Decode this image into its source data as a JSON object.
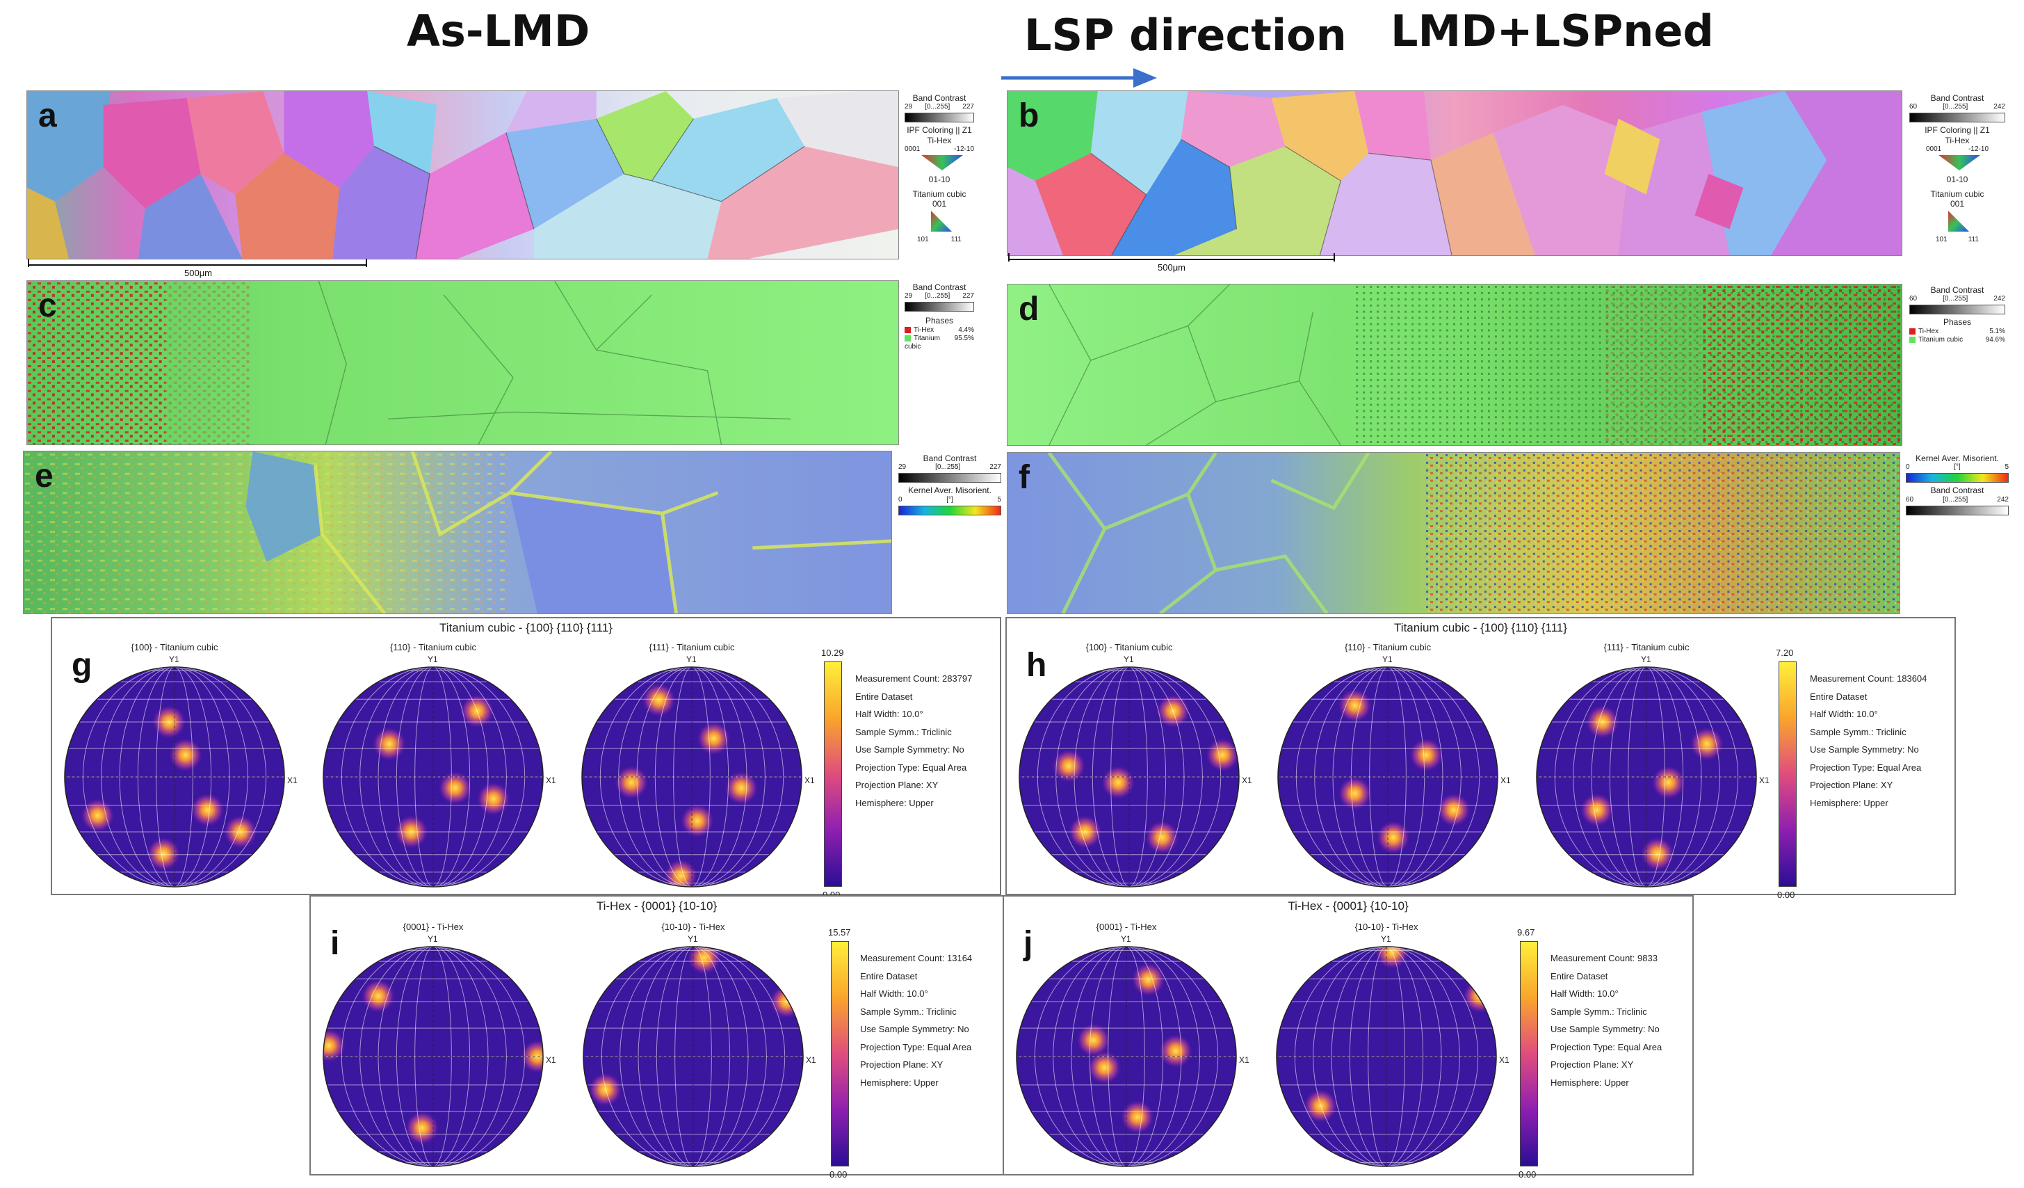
{
  "headers": {
    "left": "As-LMD",
    "middle": "LSP direction",
    "right": "LMD+LSPned"
  },
  "colors": {
    "arrow": "#3a6fcb",
    "ti_hex": "#e01e1e",
    "ti_cubic": "#5ee45e"
  },
  "panels": {
    "a": {
      "letter": "a",
      "scale": "500μm",
      "legend": {
        "band_contrast": "Band Contrast",
        "bc_min": "29",
        "bc_range": "[0...255]",
        "bc_max": "227",
        "ipf": "IPF Coloring || Z1",
        "hex_name": "Ti-Hex",
        "hex_top": "0001",
        "hex_right": "-12-10",
        "hex_bottom": "01-10",
        "cubic_name": "Titanium cubic",
        "cubic_top": "001",
        "cubic_left": "101",
        "cubic_right": "111"
      }
    },
    "b": {
      "letter": "b",
      "scale": "500μm",
      "legend": {
        "band_contrast": "Band Contrast",
        "bc_min": "60",
        "bc_range": "[0...255]",
        "bc_max": "242",
        "ipf": "IPF Coloring || Z1",
        "hex_name": "Ti-Hex",
        "hex_top": "0001",
        "hex_right": "-12-10",
        "hex_bottom": "01-10",
        "cubic_name": "Titanium cubic",
        "cubic_top": "001",
        "cubic_left": "101",
        "cubic_right": "111"
      }
    },
    "c": {
      "letter": "c",
      "legend": {
        "band_contrast": "Band Contrast",
        "bc_min": "29",
        "bc_range": "[0...255]",
        "bc_max": "227",
        "phases": "Phases",
        "hex_name": "Ti-Hex",
        "hex_pct": "4.4%",
        "cubic_name": "Titanium cubic",
        "cubic_pct": "95.5%"
      }
    },
    "d": {
      "letter": "d",
      "legend": {
        "band_contrast": "Band Contrast",
        "bc_min": "60",
        "bc_range": "[0...255]",
        "bc_max": "242",
        "phases": "Phases",
        "hex_name": "Ti-Hex",
        "hex_pct": "5.1%",
        "cubic_name": "Titanium cubic",
        "cubic_pct": "94.6%"
      }
    },
    "e": {
      "letter": "e",
      "legend": {
        "band_contrast": "Band Contrast",
        "bc_min": "29",
        "bc_range": "[0...255]",
        "bc_max": "227",
        "kam": "Kernel Aver. Misorient.",
        "kam_min": "0",
        "kam_unit": "[°]",
        "kam_max": "5"
      }
    },
    "f": {
      "letter": "f",
      "legend": {
        "kam": "Kernel Aver. Misorient.",
        "kam_min": "0",
        "kam_unit": "[°]",
        "kam_max": "5",
        "band_contrast": "Band Contrast",
        "bc_min": "60",
        "bc_range": "[0...255]",
        "bc_max": "242"
      }
    }
  },
  "pole_figures": {
    "g": {
      "letter": "g",
      "title": "Titanium cubic - {100} {110} {111}",
      "plots": [
        "{100} - Titanium cubic",
        "{110} - Titanium cubic",
        "{111} - Titanium cubic"
      ],
      "cb_max": "10.29",
      "cb_min": "0.00",
      "axis_y": "Y1",
      "axis_x": "X1",
      "info": [
        "Measurement Count: 283797",
        "Entire Dataset",
        "Half Width: 10.0°",
        "Sample Symm.: Triclinic",
        "Use Sample Symmetry: No",
        "Projection Type: Equal Area",
        "Projection Plane: XY",
        "Hemisphere: Upper"
      ]
    },
    "h": {
      "letter": "h",
      "title": "Titanium cubic - {100} {110} {111}",
      "plots": [
        "{100} - Titanium cubic",
        "{110} - Titanium cubic",
        "{111} - Titanium cubic"
      ],
      "cb_max": "7.20",
      "cb_min": "0.00",
      "axis_y": "Y1",
      "axis_x": "X1",
      "info": [
        "Measurement Count: 183604",
        "Entire Dataset",
        "Half Width: 10.0°",
        "Sample Symm.: Triclinic",
        "Use Sample Symmetry: No",
        "Projection Type: Equal Area",
        "Projection Plane: XY",
        "Hemisphere: Upper"
      ]
    },
    "i": {
      "letter": "i",
      "title": "Ti-Hex - {0001} {10-10}",
      "plots": [
        "{0001} - Ti-Hex",
        "{10-10} - Ti-Hex"
      ],
      "cb_max": "15.57",
      "cb_min": "0.00",
      "axis_y": "Y1",
      "axis_x": "X1",
      "info": [
        "Measurement Count: 13164",
        "Entire Dataset",
        "Half Width: 10.0°",
        "Sample Symm.: Triclinic",
        "Use Sample Symmetry: No",
        "Projection Type: Equal Area",
        "Projection Plane: XY",
        "Hemisphere: Upper"
      ]
    },
    "j": {
      "letter": "j",
      "title": "Ti-Hex - {0001} {10-10}",
      "plots": [
        "{0001} - Ti-Hex",
        "{10-10} - Ti-Hex"
      ],
      "cb_max": "9.67",
      "cb_min": "0.00",
      "axis_y": "Y1",
      "axis_x": "X1",
      "info": [
        "Measurement Count: 9833",
        "Entire Dataset",
        "Half Width: 10.0°",
        "Sample Symm.: Triclinic",
        "Use Sample Symmetry: No",
        "Projection Type: Equal Area",
        "Projection Plane: XY",
        "Hemisphere: Upper"
      ]
    }
  }
}
